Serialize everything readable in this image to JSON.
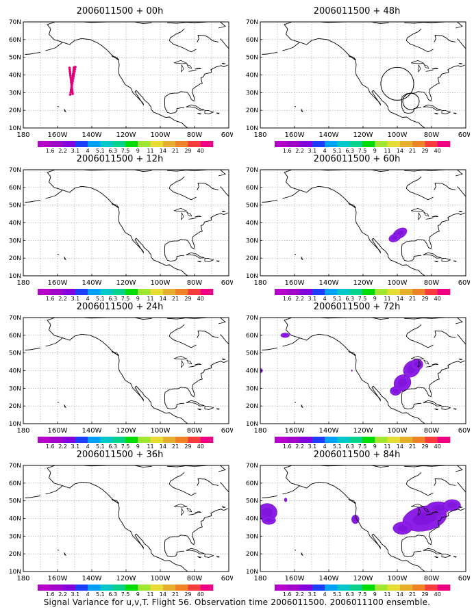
{
  "panels": [
    {
      "title": "2006011500 + 00h"
    },
    {
      "title": "2006011500 + 48h"
    },
    {
      "title": "2006011500 + 12h"
    },
    {
      "title": "2006011500 + 60h"
    },
    {
      "title": "2006011500 + 24h"
    },
    {
      "title": "2006011500 + 72h"
    },
    {
      "title": "2006011500 + 36h"
    },
    {
      "title": "2006011500 + 84h"
    }
  ],
  "map": {
    "lat_labels": [
      "10N",
      "20N",
      "30N",
      "40N",
      "50N",
      "60N",
      "70N"
    ],
    "lon_labels": [
      "180",
      "160W",
      "140W",
      "120W",
      "100W",
      "80W",
      "60W"
    ]
  },
  "colorbar": {
    "labels": [
      "1.6",
      "2.2",
      "3.1",
      "4",
      "5.1",
      "6.3",
      "7.5",
      "9",
      "11",
      "14",
      "21",
      "29",
      "40"
    ],
    "colors": [
      "#a000c8",
      "#8200dc",
      "#1e3cff",
      "#00a0ff",
      "#00c8c8",
      "#00d28c",
      "#00dc00",
      "#a0e632",
      "#e6dc32",
      "#e6af2d",
      "#f08228",
      "#fa3c3c",
      "#f00082"
    ]
  },
  "caption": "Signal Variance for u,v,T. Flight 56. Observation time 2006011500. 2006011100 ensemble."
}
